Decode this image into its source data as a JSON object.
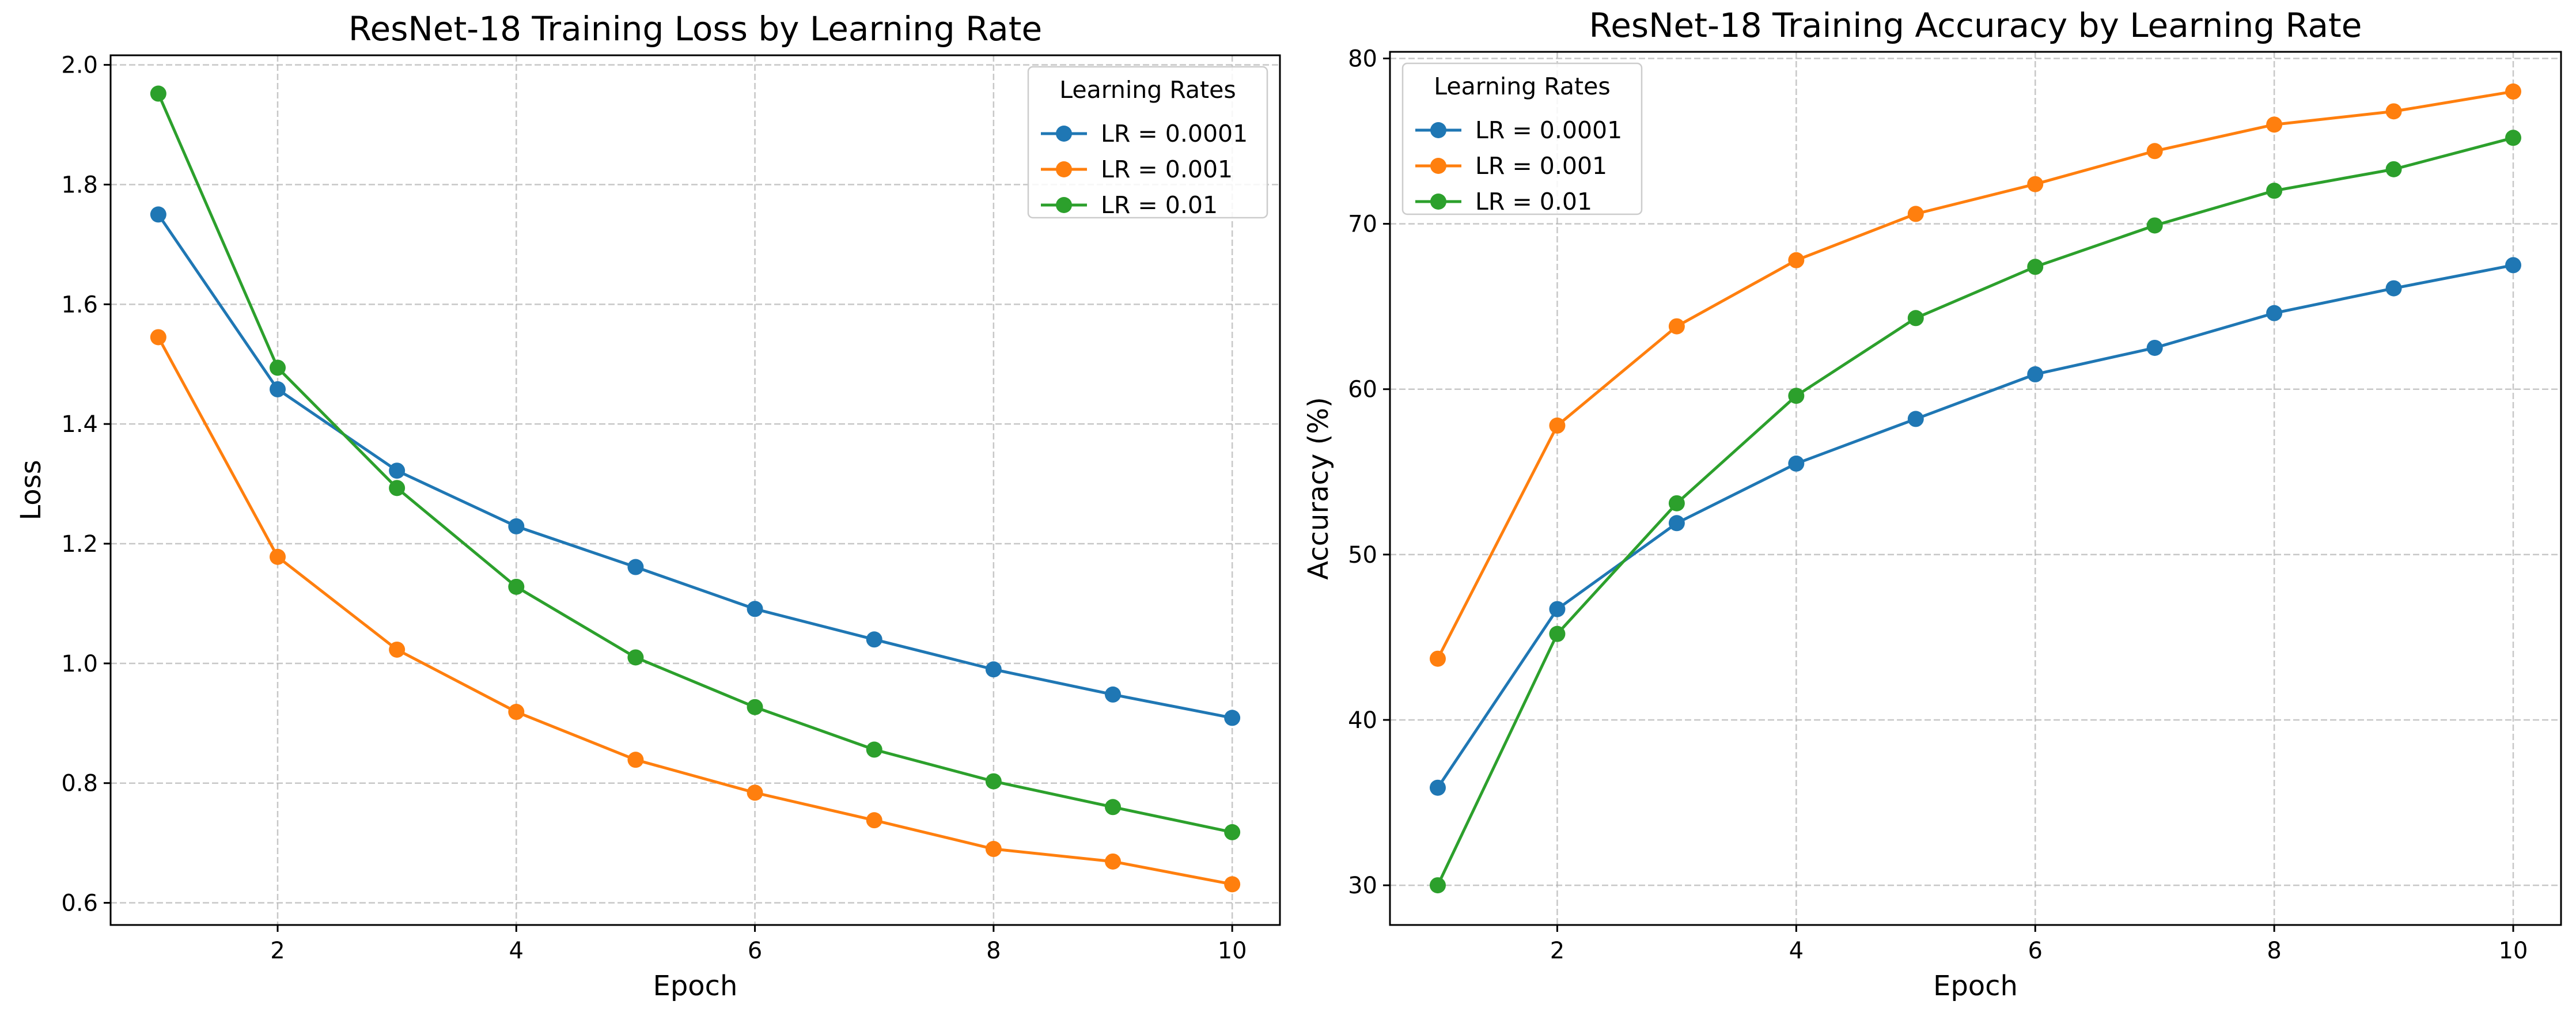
{
  "colors": {
    "series": [
      "#1f77b4",
      "#ff7f0e",
      "#2ca02c"
    ],
    "grid": "#b0b0b0",
    "legend_border": "#cccccc"
  },
  "chart_data": [
    {
      "type": "line",
      "title": "ResNet-18 Training Loss by Learning Rate",
      "xlabel": "Epoch",
      "ylabel": "Loss",
      "xlim": [
        0.6,
        10.4
      ],
      "ylim": [
        0.563,
        2.016
      ],
      "xticks": [
        2,
        4,
        6,
        8,
        10
      ],
      "xtick_labels": [
        "2",
        "4",
        "6",
        "8",
        "10"
      ],
      "yticks": [
        0.6,
        0.8,
        1.0,
        1.2,
        1.4,
        1.6,
        1.8,
        2.0
      ],
      "ytick_labels": [
        "0.6",
        "0.8",
        "1.0",
        "1.2",
        "1.4",
        "1.6",
        "1.8",
        "2.0"
      ],
      "grid": true,
      "legend": {
        "title": "Learning Rates",
        "position": "top-right"
      },
      "x": [
        1,
        2,
        3,
        4,
        5,
        6,
        7,
        8,
        9,
        10
      ],
      "series": [
        {
          "name": "LR = 0.0001",
          "values": [
            1.75,
            1.458,
            1.322,
            1.229,
            1.161,
            1.091,
            1.04,
            0.99,
            0.948,
            0.909
          ]
        },
        {
          "name": "LR = 0.001",
          "values": [
            1.545,
            1.178,
            1.023,
            0.919,
            0.839,
            0.784,
            0.738,
            0.69,
            0.669,
            0.631
          ]
        },
        {
          "name": "LR = 0.01",
          "values": [
            1.952,
            1.494,
            1.293,
            1.128,
            1.01,
            0.927,
            0.856,
            0.803,
            0.76,
            0.718
          ]
        }
      ]
    },
    {
      "type": "line",
      "title": "ResNet-18 Training Accuracy by Learning Rate",
      "xlabel": "Epoch",
      "ylabel": "Accuracy (%)",
      "xlim": [
        0.6,
        10.4
      ],
      "ylim": [
        27.6,
        80.4
      ],
      "xticks": [
        2,
        4,
        6,
        8,
        10
      ],
      "xtick_labels": [
        "2",
        "4",
        "6",
        "8",
        "10"
      ],
      "yticks": [
        30,
        40,
        50,
        60,
        70,
        80
      ],
      "ytick_labels": [
        "30",
        "40",
        "50",
        "60",
        "70",
        "80"
      ],
      "grid": true,
      "legend": {
        "title": "Learning Rates",
        "position": "top-left"
      },
      "x": [
        1,
        2,
        3,
        4,
        5,
        6,
        7,
        8,
        9,
        10
      ],
      "series": [
        {
          "name": "LR = 0.0001",
          "values": [
            35.9,
            46.7,
            51.9,
            55.5,
            58.2,
            60.9,
            62.5,
            64.6,
            66.1,
            67.5
          ]
        },
        {
          "name": "LR = 0.001",
          "values": [
            43.7,
            57.8,
            63.8,
            67.8,
            70.6,
            72.4,
            74.4,
            76.0,
            76.8,
            78.0
          ]
        },
        {
          "name": "LR = 0.01",
          "values": [
            30.0,
            45.2,
            53.1,
            59.6,
            64.3,
            67.4,
            69.9,
            72.0,
            73.3,
            75.2
          ]
        }
      ]
    }
  ]
}
